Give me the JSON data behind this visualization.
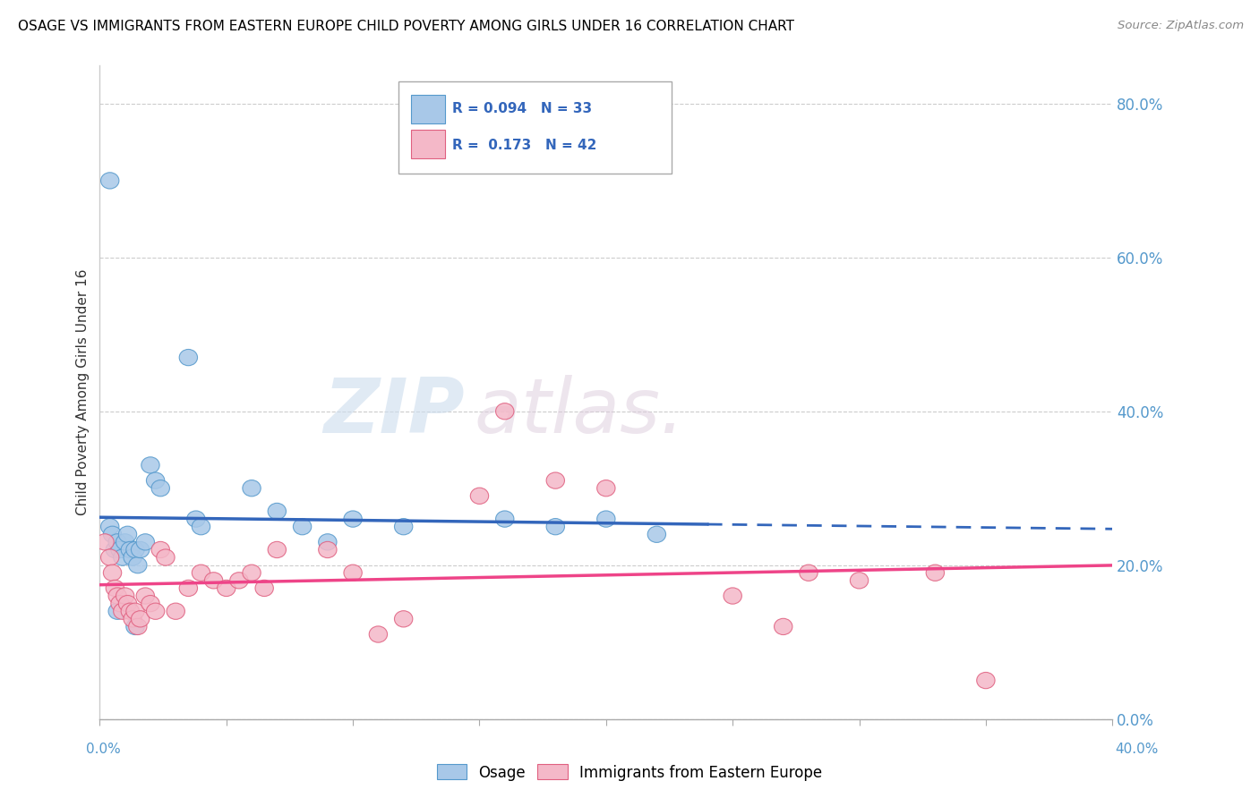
{
  "title": "OSAGE VS IMMIGRANTS FROM EASTERN EUROPE CHILD POVERTY AMONG GIRLS UNDER 16 CORRELATION CHART",
  "source": "Source: ZipAtlas.com",
  "ylabel": "Child Poverty Among Girls Under 16",
  "ylabel_right_ticks": [
    "0.0%",
    "20.0%",
    "40.0%",
    "60.0%",
    "80.0%"
  ],
  "ylabel_right_values": [
    0.0,
    0.2,
    0.4,
    0.6,
    0.8
  ],
  "blue_color": "#a8c8e8",
  "pink_color": "#f4b8c8",
  "blue_edge_color": "#5599cc",
  "pink_edge_color": "#e06080",
  "blue_line_color": "#3366bb",
  "pink_line_color": "#ee4488",
  "xlim": [
    0.0,
    0.4
  ],
  "ylim": [
    0.0,
    0.85
  ],
  "blue_points": [
    [
      0.004,
      0.7
    ],
    [
      0.004,
      0.25
    ],
    [
      0.005,
      0.24
    ],
    [
      0.006,
      0.22
    ],
    [
      0.007,
      0.23
    ],
    [
      0.008,
      0.22
    ],
    [
      0.009,
      0.21
    ],
    [
      0.01,
      0.23
    ],
    [
      0.011,
      0.24
    ],
    [
      0.012,
      0.22
    ],
    [
      0.013,
      0.21
    ],
    [
      0.014,
      0.22
    ],
    [
      0.015,
      0.2
    ],
    [
      0.016,
      0.22
    ],
    [
      0.018,
      0.23
    ],
    [
      0.02,
      0.33
    ],
    [
      0.022,
      0.31
    ],
    [
      0.024,
      0.3
    ],
    [
      0.035,
      0.47
    ],
    [
      0.038,
      0.26
    ],
    [
      0.04,
      0.25
    ],
    [
      0.06,
      0.3
    ],
    [
      0.07,
      0.27
    ],
    [
      0.08,
      0.25
    ],
    [
      0.09,
      0.23
    ],
    [
      0.1,
      0.26
    ],
    [
      0.12,
      0.25
    ],
    [
      0.16,
      0.26
    ],
    [
      0.18,
      0.25
    ],
    [
      0.2,
      0.26
    ],
    [
      0.22,
      0.24
    ],
    [
      0.007,
      0.14
    ],
    [
      0.014,
      0.12
    ]
  ],
  "pink_points": [
    [
      0.002,
      0.23
    ],
    [
      0.004,
      0.21
    ],
    [
      0.005,
      0.19
    ],
    [
      0.006,
      0.17
    ],
    [
      0.007,
      0.16
    ],
    [
      0.008,
      0.15
    ],
    [
      0.009,
      0.14
    ],
    [
      0.01,
      0.16
    ],
    [
      0.011,
      0.15
    ],
    [
      0.012,
      0.14
    ],
    [
      0.013,
      0.13
    ],
    [
      0.014,
      0.14
    ],
    [
      0.015,
      0.12
    ],
    [
      0.016,
      0.13
    ],
    [
      0.018,
      0.16
    ],
    [
      0.02,
      0.15
    ],
    [
      0.022,
      0.14
    ],
    [
      0.024,
      0.22
    ],
    [
      0.026,
      0.21
    ],
    [
      0.03,
      0.14
    ],
    [
      0.035,
      0.17
    ],
    [
      0.04,
      0.19
    ],
    [
      0.045,
      0.18
    ],
    [
      0.05,
      0.17
    ],
    [
      0.055,
      0.18
    ],
    [
      0.06,
      0.19
    ],
    [
      0.065,
      0.17
    ],
    [
      0.07,
      0.22
    ],
    [
      0.09,
      0.22
    ],
    [
      0.1,
      0.19
    ],
    [
      0.11,
      0.11
    ],
    [
      0.12,
      0.13
    ],
    [
      0.15,
      0.29
    ],
    [
      0.16,
      0.4
    ],
    [
      0.18,
      0.31
    ],
    [
      0.2,
      0.3
    ],
    [
      0.25,
      0.16
    ],
    [
      0.27,
      0.12
    ],
    [
      0.28,
      0.19
    ],
    [
      0.3,
      0.18
    ],
    [
      0.33,
      0.19
    ],
    [
      0.35,
      0.05
    ]
  ],
  "grid_color": "#cccccc",
  "bg_color": "#ffffff"
}
